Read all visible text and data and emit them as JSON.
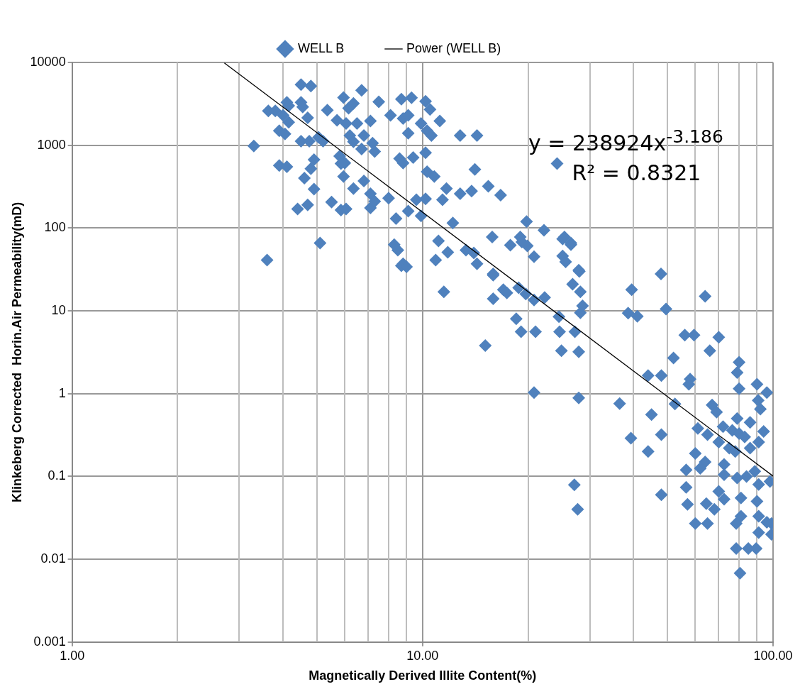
{
  "chart_data": {
    "type": "scatter",
    "xlabel": "Magnetically Derived Illite Content(%)",
    "ylabel": "Klinkeberg Corrected  Horin.Air Permeability(mD)",
    "log": "xy",
    "grid": true,
    "legend": "top",
    "marker": "diamond",
    "xlim": [
      1,
      100
    ],
    "xticks": [
      {
        "value": 1,
        "label": "1.00"
      },
      {
        "value": 10,
        "label": "10.00"
      },
      {
        "value": 100,
        "label": "100.00"
      }
    ],
    "ylim": [
      0.001,
      10000
    ],
    "yticks": [
      0.001,
      0.01,
      0.1,
      1,
      10,
      100,
      1000,
      10000
    ],
    "annotations": [
      "y = 238924x$^{-3.186}$",
      "R² = 0.8321"
    ],
    "series": [
      {
        "name": "WELL B",
        "color": "#4f81bd",
        "x": [
          3.3,
          3.6,
          4.5,
          4.8,
          6.7,
          3.63,
          3.8,
          4.1,
          4.15,
          4.5,
          4.55,
          5.35,
          5.95,
          6.35,
          6.15,
          7.5,
          8.7,
          9.3,
          10.2,
          10.5,
          11.2,
          4.0,
          4.15,
          4.7,
          3.9,
          4.05,
          4.5,
          4.75,
          5.05,
          5.2,
          5.7,
          6.05,
          6.5,
          7.1,
          6.2,
          6.8,
          6.35,
          7.2,
          7.3,
          6.7,
          5.8,
          6.0,
          8.1,
          8.8,
          9.1,
          9.9,
          10.3,
          10.6,
          9.1,
          12.8,
          14.3,
          3.9,
          4.1,
          4.9,
          4.8,
          4.6,
          4.9,
          4.4,
          4.7,
          5.85,
          5.95,
          6.35,
          6.8,
          7.1,
          5.5,
          5.85,
          6.05,
          7.1,
          7.3,
          8.0,
          8.6,
          8.8,
          9.4,
          10.2,
          8.4,
          9.1,
          9.6,
          9.9,
          10.2,
          10.3,
          10.8,
          11.7,
          11.4,
          12.8,
          13.8,
          14.1,
          15.4,
          12.2,
          15.8,
          5.1,
          8.3,
          11.1,
          11.8,
          10.9,
          8.8,
          14.3,
          15.9,
          13.3,
          16.7,
          24.2,
          19.8,
          22.2,
          17.8,
          19.0,
          19.2,
          19.9,
          25.4,
          26.5,
          20.8,
          25.1,
          25.6,
          27.9,
          47.9,
          39.5,
          8.5,
          8.7,
          9.0,
          11.5,
          14.0,
          15.9,
          15.9,
          17.0,
          17.4,
          18.8,
          19.7,
          20.8,
          22.3,
          25.1,
          26.5,
          28.0,
          26.8,
          28.2,
          28.6,
          28.2,
          24.5,
          18.5,
          19.1,
          21,
          24.6,
          27.2,
          24.9,
          27.9,
          15.1,
          20.8,
          27.9,
          27.1,
          27.7,
          38.6,
          41,
          36.5,
          39.3,
          64,
          49.5,
          56,
          59.5,
          70,
          66,
          52,
          80,
          79,
          80,
          90,
          96,
          90.7,
          92,
          44,
          48,
          58,
          57.5,
          52.5,
          45,
          48,
          44,
          67,
          69,
          61,
          65,
          70,
          72,
          79,
          86,
          76.5,
          80,
          83,
          86,
          91,
          94,
          75,
          78,
          60,
          64,
          62,
          56.5,
          72.5,
          72.5,
          79,
          84,
          88.7,
          98,
          56.5,
          48,
          70,
          72.5,
          81,
          90,
          91,
          57,
          64.5,
          68,
          60,
          65,
          78.5,
          81,
          91,
          96,
          91,
          99,
          99,
          78.5,
          85,
          89.5,
          80.5
        ],
        "values": [
          980,
          41,
          5400,
          5200,
          4600,
          2600,
          2600,
          3300,
          3000,
          3300,
          2900,
          2650,
          3760,
          3200,
          2800,
          3350,
          3600,
          3750,
          3400,
          2700,
          1960,
          2300,
          1900,
          2150,
          1500,
          1370,
          1120,
          1120,
          1250,
          1120,
          2000,
          1830,
          1830,
          1960,
          1310,
          1310,
          1100,
          1060,
          840,
          900,
          740,
          610,
          2300,
          2100,
          2300,
          1830,
          1500,
          1310,
          1400,
          1310,
          1310,
          570,
          550,
          670,
          520,
          400,
          295,
          170,
          190,
          600,
          420,
          300,
          370,
          260,
          206,
          165,
          170,
          175,
          210,
          230,
          690,
          610,
          710,
          810,
          130,
          160,
          220,
          140,
          225,
          480,
          420,
          300,
          220,
          260,
          280,
          510,
          320,
          115,
          78,
          66,
          63,
          70,
          51,
          41,
          37,
          37,
          28,
          54,
          250,
          600,
          120,
          94,
          62,
          78,
          68,
          61,
          78,
          66,
          45,
          46,
          39,
          31,
          28,
          18,
          54,
          35,
          34,
          17,
          50,
          27,
          14,
          18,
          16.5,
          19,
          16,
          13.5,
          14.5,
          74,
          63,
          30,
          21,
          17,
          11.5,
          9.5,
          8.5,
          8,
          5.6,
          5.6,
          5.6,
          5.6,
          3.3,
          3.2,
          3.8,
          1.03,
          0.89,
          0.079,
          0.04,
          9.4,
          8.6,
          0.76,
          0.29,
          15,
          10.5,
          5.1,
          5.1,
          4.8,
          3.3,
          2.7,
          2.4,
          1.8,
          1.15,
          1.3,
          1.03,
          0.83,
          0.65,
          1.65,
          1.65,
          1.5,
          1.3,
          0.75,
          0.56,
          0.32,
          0.2,
          0.73,
          0.6,
          0.38,
          0.32,
          0.26,
          0.4,
          0.5,
          0.45,
          0.36,
          0.33,
          0.3,
          0.22,
          0.26,
          0.35,
          0.22,
          0.2,
          0.19,
          0.15,
          0.125,
          0.12,
          0.14,
          0.105,
          0.096,
          0.1,
          0.115,
          0.087,
          0.074,
          0.06,
          0.066,
          0.053,
          0.055,
          0.05,
          0.08,
          0.046,
          0.047,
          0.04,
          0.027,
          0.027,
          0.027,
          0.033,
          0.033,
          0.028,
          0.021,
          0.02,
          0.027,
          0.0135,
          0.0135,
          0.0135,
          0.0068
        ]
      },
      {
        "name": "Power (WELL B)",
        "color": "#000000",
        "type": "line",
        "marker": "none",
        "x": [
          2.72,
          100
        ],
        "values": [
          9840,
          0.101
        ]
      }
    ]
  }
}
